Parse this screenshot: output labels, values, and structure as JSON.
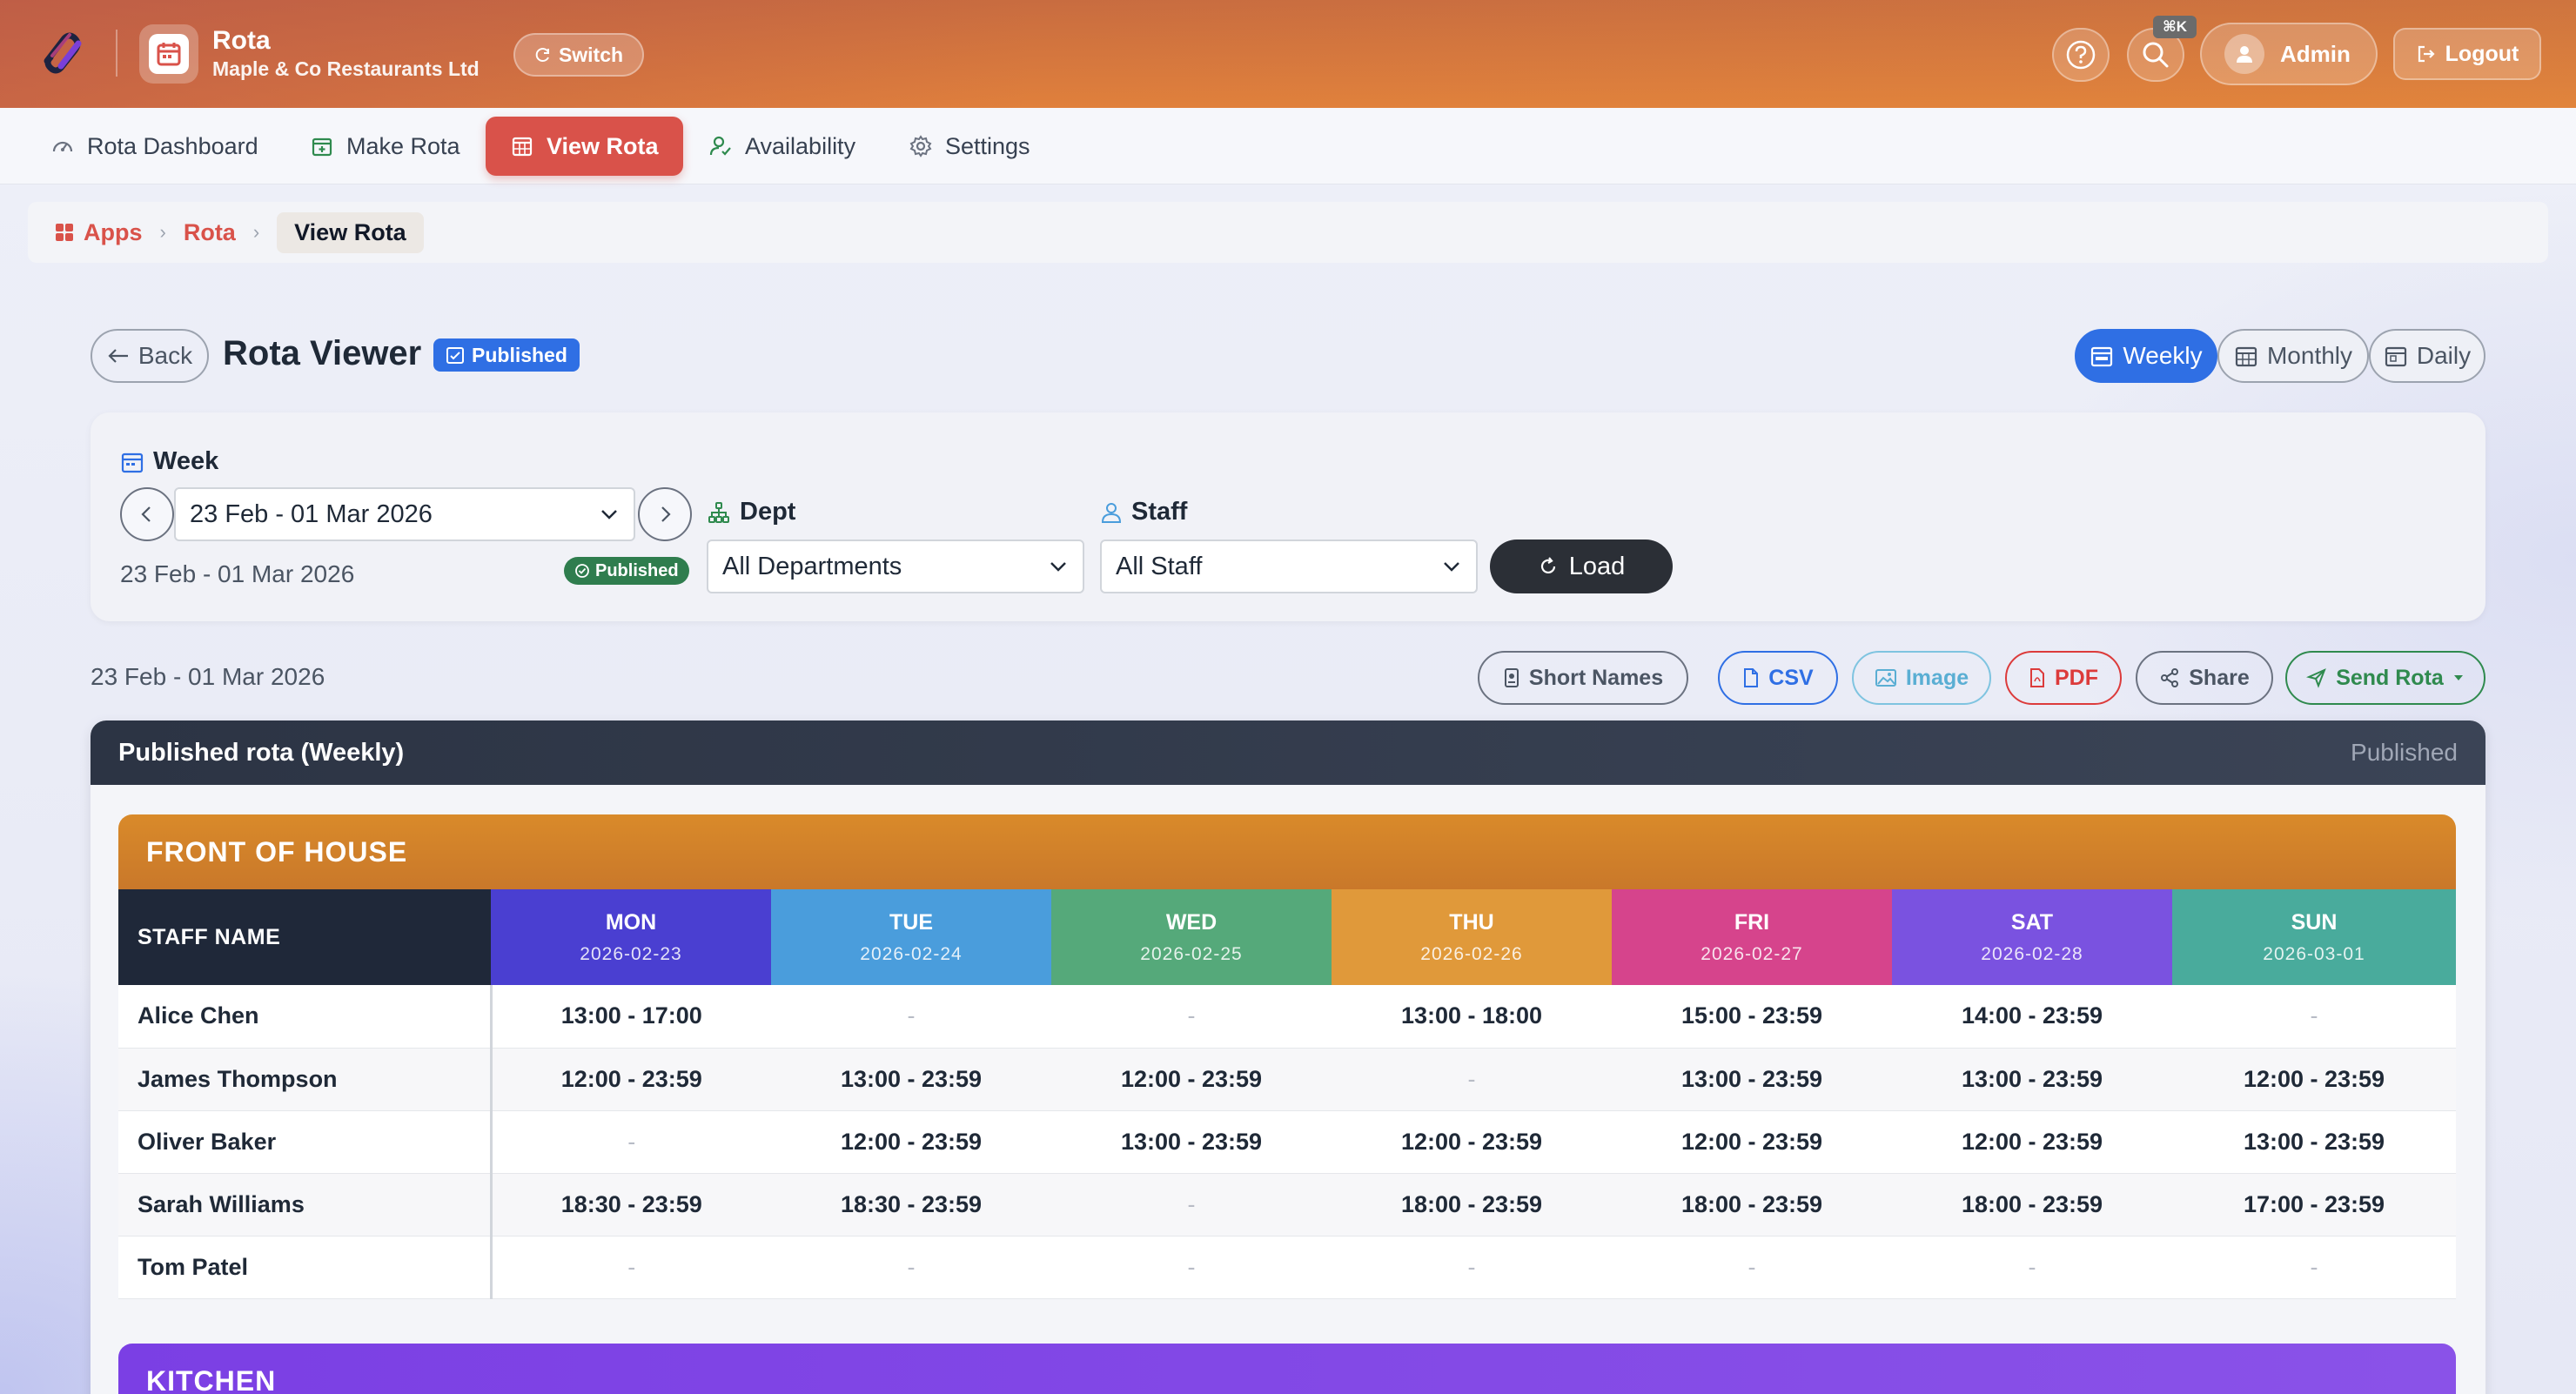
{
  "app": {
    "name": "Rota",
    "company": "Maple & Co Restaurants Ltd",
    "switch_label": "Switch",
    "shortcut": "⌘K",
    "user": "Admin",
    "logout_label": "Logout"
  },
  "nav": {
    "items": [
      {
        "label": "Rota Dashboard",
        "icon": "gauge-icon"
      },
      {
        "label": "Make Rota",
        "icon": "calendar-plus-icon"
      },
      {
        "label": "View Rota",
        "icon": "calendar-grid-icon",
        "active": true
      },
      {
        "label": "Availability",
        "icon": "person-check-icon"
      },
      {
        "label": "Settings",
        "icon": "gear-icon"
      }
    ]
  },
  "breadcrumb": {
    "apps": "Apps",
    "rota": "Rota",
    "current": "View Rota"
  },
  "page": {
    "back_label": "Back",
    "title": "Rota Viewer",
    "status_badge": "Published",
    "views": {
      "weekly": "Weekly",
      "monthly": "Monthly",
      "daily": "Daily"
    },
    "active_view": "Weekly"
  },
  "filters": {
    "week_label": "Week",
    "week_value": "23 Feb - 01 Mar 2026",
    "week_sub": "23 Feb - 01 Mar 2026",
    "week_status": "Published",
    "dept_label": "Dept",
    "dept_value": "All Departments",
    "staff_label": "Staff",
    "staff_value": "All Staff",
    "load_label": "Load"
  },
  "actions": {
    "range": "23 Feb - 01 Mar 2026",
    "short_names": "Short Names",
    "csv": "CSV",
    "image": "Image",
    "pdf": "PDF",
    "share": "Share",
    "send_rota": "Send Rota"
  },
  "colors": {
    "accent": "#d9524a",
    "primary": "#2f6fe4",
    "mon": "#4a3fd1",
    "tue": "#4a9ddc",
    "wed": "#55a97a",
    "thu": "#e0993a",
    "fri": "#d6448c",
    "sat": "#7a52e0",
    "sun": "#49ab9c"
  },
  "rota": {
    "card_title": "Published rota (Weekly)",
    "card_status": "Published",
    "staff_header": "STAFF NAME",
    "days": [
      {
        "name": "MON",
        "date": "2026-02-23"
      },
      {
        "name": "TUE",
        "date": "2026-02-24"
      },
      {
        "name": "WED",
        "date": "2026-02-25"
      },
      {
        "name": "THU",
        "date": "2026-02-26"
      },
      {
        "name": "FRI",
        "date": "2026-02-27"
      },
      {
        "name": "SAT",
        "date": "2026-02-28"
      },
      {
        "name": "SUN",
        "date": "2026-03-01"
      }
    ],
    "sections": [
      {
        "name": "FRONT OF HOUSE",
        "rows": [
          {
            "staff": "Alice Chen",
            "shifts": [
              "13:00 - 17:00",
              "-",
              "-",
              "13:00 - 18:00",
              "15:00 - 23:59",
              "14:00 - 23:59",
              "-"
            ]
          },
          {
            "staff": "James Thompson",
            "shifts": [
              "12:00 - 23:59",
              "13:00 - 23:59",
              "12:00 - 23:59",
              "-",
              "13:00 - 23:59",
              "13:00 - 23:59",
              "12:00 - 23:59"
            ]
          },
          {
            "staff": "Oliver Baker",
            "shifts": [
              "-",
              "12:00 - 23:59",
              "13:00 - 23:59",
              "12:00 - 23:59",
              "12:00 - 23:59",
              "12:00 - 23:59",
              "13:00 - 23:59"
            ]
          },
          {
            "staff": "Sarah Williams",
            "shifts": [
              "18:30 - 23:59",
              "18:30 - 23:59",
              "-",
              "18:00 - 23:59",
              "18:00 - 23:59",
              "18:00 - 23:59",
              "17:00 - 23:59"
            ]
          },
          {
            "staff": "Tom Patel",
            "shifts": [
              "-",
              "-",
              "-",
              "-",
              "-",
              "-",
              "-"
            ]
          }
        ]
      },
      {
        "name": "KITCHEN",
        "rows": []
      }
    ]
  }
}
